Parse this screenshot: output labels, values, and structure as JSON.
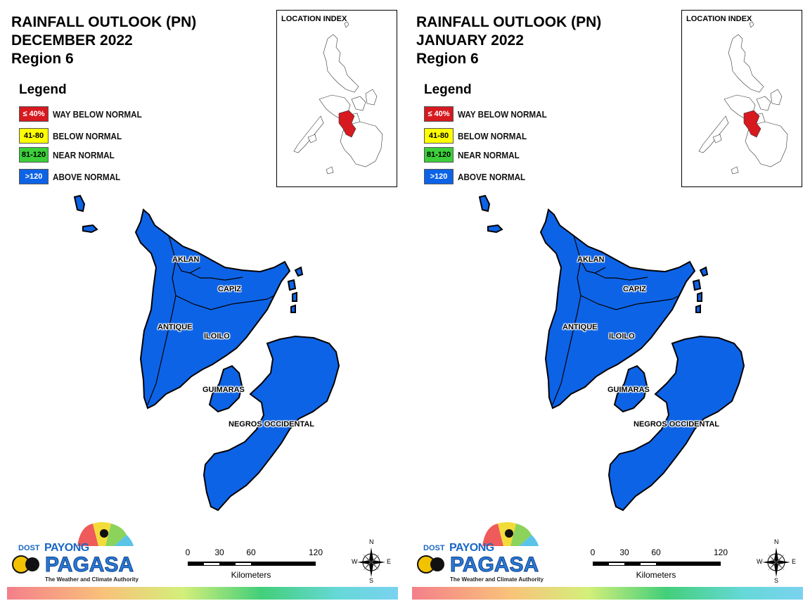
{
  "panels": [
    {
      "title_line1": "RAINFALL OUTLOOK (PN)",
      "title_line2": "DECEMBER 2022",
      "title_line3": "Region 6"
    },
    {
      "title_line1": "RAINFALL OUTLOOK (PN)",
      "title_line2": "JANUARY 2022",
      "title_line3": "Region 6"
    }
  ],
  "legend": {
    "title": "Legend",
    "items": [
      {
        "range": "≤ 40%",
        "label": "WAY BELOW NORMAL",
        "color": "#d71920",
        "text_color": "#ffffff"
      },
      {
        "range": "41-80",
        "label": "BELOW NORMAL",
        "color": "#ffff00",
        "text_color": "#000000"
      },
      {
        "range": "81-120",
        "label": "NEAR NORMAL",
        "color": "#3ccf3a",
        "text_color": "#000000"
      },
      {
        "range": ">120",
        "label": "ABOVE NORMAL",
        "color": "#0d63e6",
        "text_color": "#ffffff"
      }
    ]
  },
  "inset": {
    "title": "LOCATION INDEX",
    "highlight_color": "#d71920"
  },
  "provinces": {
    "aklan": "AKLAN",
    "capiz": "CAPIZ",
    "antique": "ANTIQUE",
    "iloilo": "ILOILO",
    "guimaras": "GUIMARAS",
    "negros": "NEGROS OCCIDENTAL"
  },
  "map_fill_color": "#0d63e6",
  "scale": {
    "ticks": [
      "0",
      "30",
      "60",
      "120"
    ],
    "units": "Kilometers"
  },
  "compass": {
    "n": "N",
    "s": "S",
    "e": "E",
    "w": "W"
  },
  "logo": {
    "dost": "DOST",
    "payong": "PAYONG",
    "pagasa": "PAGASA",
    "tagline": "The Weather and Climate Authority"
  }
}
